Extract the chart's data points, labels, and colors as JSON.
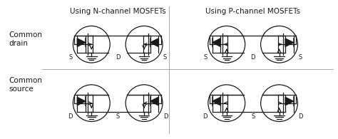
{
  "col1_title": "Using N-channel MOSFETs",
  "col2_title": "Using P-channel MOSFETs",
  "row1_label": "Common\ndrain",
  "row2_label": "Common\nsource",
  "bg_color": "#ffffff",
  "line_color": "#1a1a1a",
  "text_color": "#1a1a1a",
  "divider_color": "#999999",
  "fig_width": 4.74,
  "fig_height": 1.95,
  "dpi": 100
}
